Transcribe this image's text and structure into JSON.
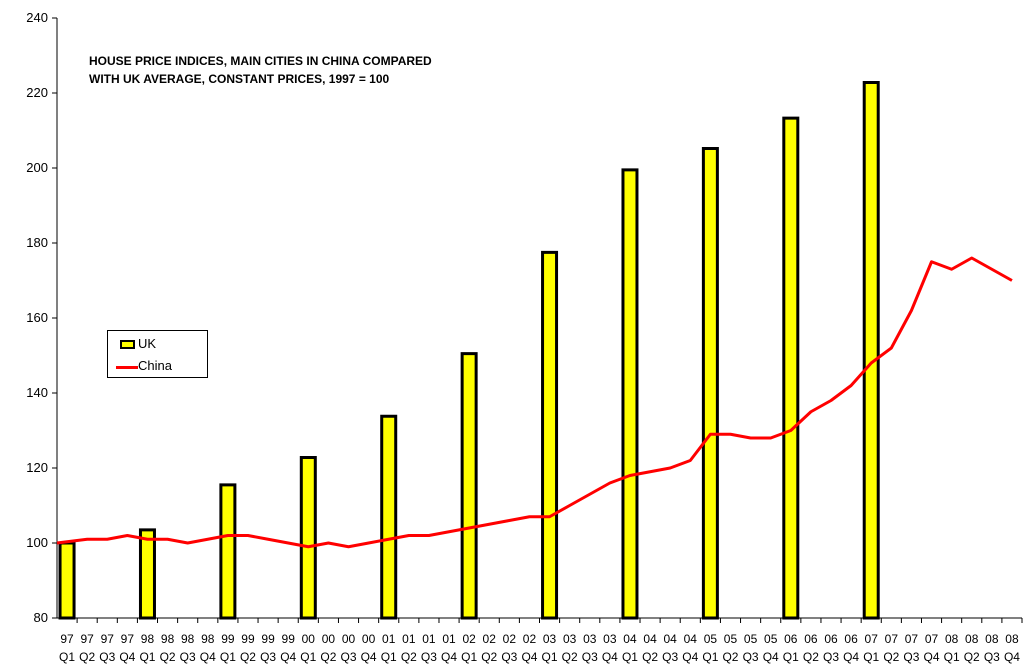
{
  "chart_data": {
    "type": "bar",
    "title_lines": [
      "HOUSE PRICE INDICES, MAIN CITIES IN CHINA COMPARED",
      "WITH UK AVERAGE, CONSTANT PRICES, 1997 = 100"
    ],
    "xlabel": "",
    "ylabel": "",
    "ylim": [
      80,
      240
    ],
    "yticks": [
      80,
      100,
      120,
      140,
      160,
      180,
      200,
      220,
      240
    ],
    "categories": [
      {
        "year": "97",
        "quarter": "Q1"
      },
      {
        "year": "97",
        "quarter": "Q2"
      },
      {
        "year": "97",
        "quarter": "Q3"
      },
      {
        "year": "97",
        "quarter": "Q4"
      },
      {
        "year": "98",
        "quarter": "Q1"
      },
      {
        "year": "98",
        "quarter": "Q2"
      },
      {
        "year": "98",
        "quarter": "Q3"
      },
      {
        "year": "98",
        "quarter": "Q4"
      },
      {
        "year": "99",
        "quarter": "Q1"
      },
      {
        "year": "99",
        "quarter": "Q2"
      },
      {
        "year": "99",
        "quarter": "Q3"
      },
      {
        "year": "99",
        "quarter": "Q4"
      },
      {
        "year": "00",
        "quarter": "Q1"
      },
      {
        "year": "00",
        "quarter": "Q2"
      },
      {
        "year": "00",
        "quarter": "Q3"
      },
      {
        "year": "00",
        "quarter": "Q4"
      },
      {
        "year": "01",
        "quarter": "Q1"
      },
      {
        "year": "01",
        "quarter": "Q2"
      },
      {
        "year": "01",
        "quarter": "Q3"
      },
      {
        "year": "01",
        "quarter": "Q4"
      },
      {
        "year": "02",
        "quarter": "Q1"
      },
      {
        "year": "02",
        "quarter": "Q2"
      },
      {
        "year": "02",
        "quarter": "Q3"
      },
      {
        "year": "02",
        "quarter": "Q4"
      },
      {
        "year": "03",
        "quarter": "Q1"
      },
      {
        "year": "03",
        "quarter": "Q2"
      },
      {
        "year": "03",
        "quarter": "Q3"
      },
      {
        "year": "03",
        "quarter": "Q4"
      },
      {
        "year": "04",
        "quarter": "Q1"
      },
      {
        "year": "04",
        "quarter": "Q2"
      },
      {
        "year": "04",
        "quarter": "Q3"
      },
      {
        "year": "04",
        "quarter": "Q4"
      },
      {
        "year": "05",
        "quarter": "Q1"
      },
      {
        "year": "05",
        "quarter": "Q2"
      },
      {
        "year": "05",
        "quarter": "Q3"
      },
      {
        "year": "05",
        "quarter": "Q4"
      },
      {
        "year": "06",
        "quarter": "Q1"
      },
      {
        "year": "06",
        "quarter": "Q2"
      },
      {
        "year": "06",
        "quarter": "Q3"
      },
      {
        "year": "06",
        "quarter": "Q4"
      },
      {
        "year": "07",
        "quarter": "Q1"
      },
      {
        "year": "07",
        "quarter": "Q2"
      },
      {
        "year": "07",
        "quarter": "Q3"
      },
      {
        "year": "07",
        "quarter": "Q4"
      },
      {
        "year": "08",
        "quarter": "Q1"
      },
      {
        "year": "08",
        "quarter": "Q2"
      },
      {
        "year": "08",
        "quarter": "Q3"
      },
      {
        "year": "08",
        "quarter": "Q4"
      }
    ],
    "series": [
      {
        "name": "UK",
        "kind": "bar",
        "color": "#ffff00",
        "values": [
          100,
          null,
          null,
          null,
          103.5,
          null,
          null,
          null,
          115.5,
          null,
          null,
          null,
          122.8,
          null,
          null,
          null,
          133.8,
          null,
          null,
          null,
          150.5,
          null,
          null,
          null,
          177.5,
          null,
          null,
          null,
          199.5,
          null,
          null,
          null,
          205.2,
          null,
          null,
          null,
          213.3,
          null,
          null,
          null,
          222.8,
          null,
          null,
          null,
          null,
          null,
          null,
          null
        ]
      },
      {
        "name": "China",
        "kind": "line",
        "color": "#ff0000",
        "values": [
          100,
          101,
          101,
          102,
          101,
          101,
          100,
          101,
          102,
          102,
          101,
          100,
          99,
          100,
          99,
          100,
          101,
          102,
          102,
          103,
          104,
          105,
          106,
          107,
          107,
          110,
          113,
          116,
          118,
          119,
          120,
          122,
          129,
          129,
          128,
          128,
          130,
          135,
          138,
          142,
          148,
          152,
          162,
          175,
          173,
          176,
          173,
          170
        ]
      }
    ],
    "grid": false,
    "legend_position": "left-middle"
  }
}
